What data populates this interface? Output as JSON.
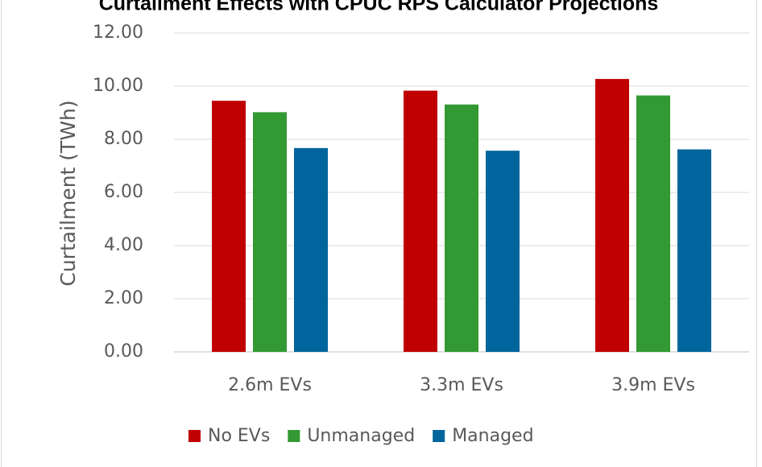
{
  "chart_data": {
    "type": "bar",
    "title": "Curtailment Effects with CPUC RPS Calculator Projections",
    "y_label": "Curtailment  (TWh)",
    "categories": [
      "2.6m EVs",
      "3.3m EVs",
      "3.9m EVs"
    ],
    "series": [
      {
        "name": "No EVs",
        "color": "#c00000",
        "values": [
          9.45,
          9.83,
          10.27
        ]
      },
      {
        "name": "Unmanaged",
        "color": "#339933",
        "values": [
          9.02,
          9.31,
          9.65
        ]
      },
      {
        "name": "Managed",
        "color": "#00659c",
        "values": [
          7.67,
          7.57,
          7.62
        ]
      }
    ],
    "ylim": [
      0,
      12
    ],
    "yticks": [
      {
        "value": 0,
        "label": "0.00"
      },
      {
        "value": 2,
        "label": "2.00"
      },
      {
        "value": 4,
        "label": "4.00"
      },
      {
        "value": 6,
        "label": "6.00"
      },
      {
        "value": 8,
        "label": "8.00"
      },
      {
        "value": 10,
        "label": "10.00"
      },
      {
        "value": 12,
        "label": "12.00"
      }
    ],
    "grid": true,
    "legend": "bottom"
  }
}
